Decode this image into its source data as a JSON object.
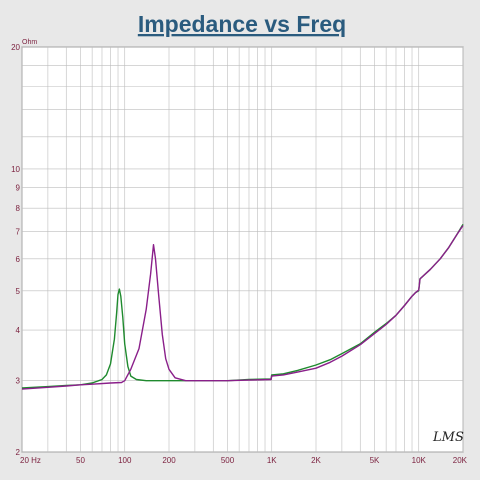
{
  "chart_data": {
    "type": "line",
    "title": "Impedance vs Freq",
    "y_unit_label": "Ohm",
    "logo_text": "LMS",
    "x_scale": "log",
    "y_scale": "log",
    "xlim": [
      20,
      20000
    ],
    "ylim": [
      2,
      20
    ],
    "grid": true,
    "legend": "none",
    "x_ticks": [
      {
        "value": 20,
        "label": "20 Hz"
      },
      {
        "value": 50,
        "label": "50"
      },
      {
        "value": 100,
        "label": "100"
      },
      {
        "value": 200,
        "label": "200"
      },
      {
        "value": 500,
        "label": "500"
      },
      {
        "value": 1000,
        "label": "1K"
      },
      {
        "value": 2000,
        "label": "2K"
      },
      {
        "value": 5000,
        "label": "5K"
      },
      {
        "value": 10000,
        "label": "10K"
      },
      {
        "value": 20000,
        "label": "20K"
      }
    ],
    "y_ticks": [
      {
        "value": 20,
        "label": "20"
      },
      {
        "value": 10,
        "label": "10"
      },
      {
        "value": 9,
        "label": "9"
      },
      {
        "value": 8,
        "label": "8"
      },
      {
        "value": 7,
        "label": "7"
      },
      {
        "value": 6,
        "label": "6"
      },
      {
        "value": 5,
        "label": "5"
      },
      {
        "value": 4,
        "label": "4"
      },
      {
        "value": 3,
        "label": "3"
      },
      {
        "value": 2,
        "label": "2"
      }
    ],
    "series": [
      {
        "color": "#1f8a2e",
        "points": [
          [
            20,
            2.88
          ],
          [
            30,
            2.9
          ],
          [
            40,
            2.92
          ],
          [
            50,
            2.93
          ],
          [
            60,
            2.96
          ],
          [
            70,
            3.02
          ],
          [
            75,
            3.1
          ],
          [
            80,
            3.3
          ],
          [
            85,
            3.8
          ],
          [
            88,
            4.4
          ],
          [
            90,
            4.9
          ],
          [
            92,
            5.05
          ],
          [
            94,
            4.85
          ],
          [
            97,
            4.3
          ],
          [
            100,
            3.7
          ],
          [
            105,
            3.25
          ],
          [
            110,
            3.08
          ],
          [
            120,
            3.02
          ],
          [
            140,
            3.0
          ],
          [
            200,
            3.0
          ],
          [
            300,
            3.0
          ],
          [
            500,
            3.0
          ],
          [
            700,
            3.02
          ],
          [
            990,
            3.03
          ],
          [
            1000,
            3.1
          ],
          [
            1200,
            3.12
          ],
          [
            1500,
            3.18
          ],
          [
            2000,
            3.28
          ],
          [
            2500,
            3.38
          ],
          [
            3000,
            3.5
          ],
          [
            4000,
            3.7
          ],
          [
            5000,
            3.95
          ],
          [
            6000,
            4.15
          ],
          [
            7000,
            4.35
          ],
          [
            8000,
            4.6
          ],
          [
            9000,
            4.85
          ],
          [
            9500,
            4.95
          ],
          [
            10000,
            5.0
          ],
          [
            10200,
            5.35
          ],
          [
            12000,
            5.65
          ],
          [
            14000,
            6.0
          ],
          [
            16000,
            6.4
          ],
          [
            18000,
            6.85
          ],
          [
            20000,
            7.3
          ]
        ]
      },
      {
        "color": "#8a1f8a",
        "points": [
          [
            20,
            2.86
          ],
          [
            30,
            2.89
          ],
          [
            40,
            2.91
          ],
          [
            50,
            2.93
          ],
          [
            60,
            2.94
          ],
          [
            80,
            2.96
          ],
          [
            95,
            2.97
          ],
          [
            100,
            3.0
          ],
          [
            110,
            3.2
          ],
          [
            125,
            3.6
          ],
          [
            140,
            4.5
          ],
          [
            150,
            5.5
          ],
          [
            157,
            6.5
          ],
          [
            162,
            6.0
          ],
          [
            170,
            4.9
          ],
          [
            180,
            3.9
          ],
          [
            190,
            3.4
          ],
          [
            200,
            3.2
          ],
          [
            220,
            3.05
          ],
          [
            260,
            3.0
          ],
          [
            300,
            3.0
          ],
          [
            500,
            3.0
          ],
          [
            700,
            3.01
          ],
          [
            990,
            3.02
          ],
          [
            1000,
            3.08
          ],
          [
            1200,
            3.1
          ],
          [
            1500,
            3.15
          ],
          [
            2000,
            3.22
          ],
          [
            2500,
            3.33
          ],
          [
            3000,
            3.45
          ],
          [
            4000,
            3.68
          ],
          [
            5000,
            3.92
          ],
          [
            6000,
            4.13
          ],
          [
            7000,
            4.35
          ],
          [
            8000,
            4.6
          ],
          [
            9000,
            4.85
          ],
          [
            9500,
            4.95
          ],
          [
            10000,
            5.02
          ],
          [
            10200,
            5.35
          ],
          [
            12000,
            5.65
          ],
          [
            14000,
            6.0
          ],
          [
            16000,
            6.4
          ],
          [
            18000,
            6.85
          ],
          [
            20000,
            7.25
          ]
        ]
      }
    ]
  }
}
